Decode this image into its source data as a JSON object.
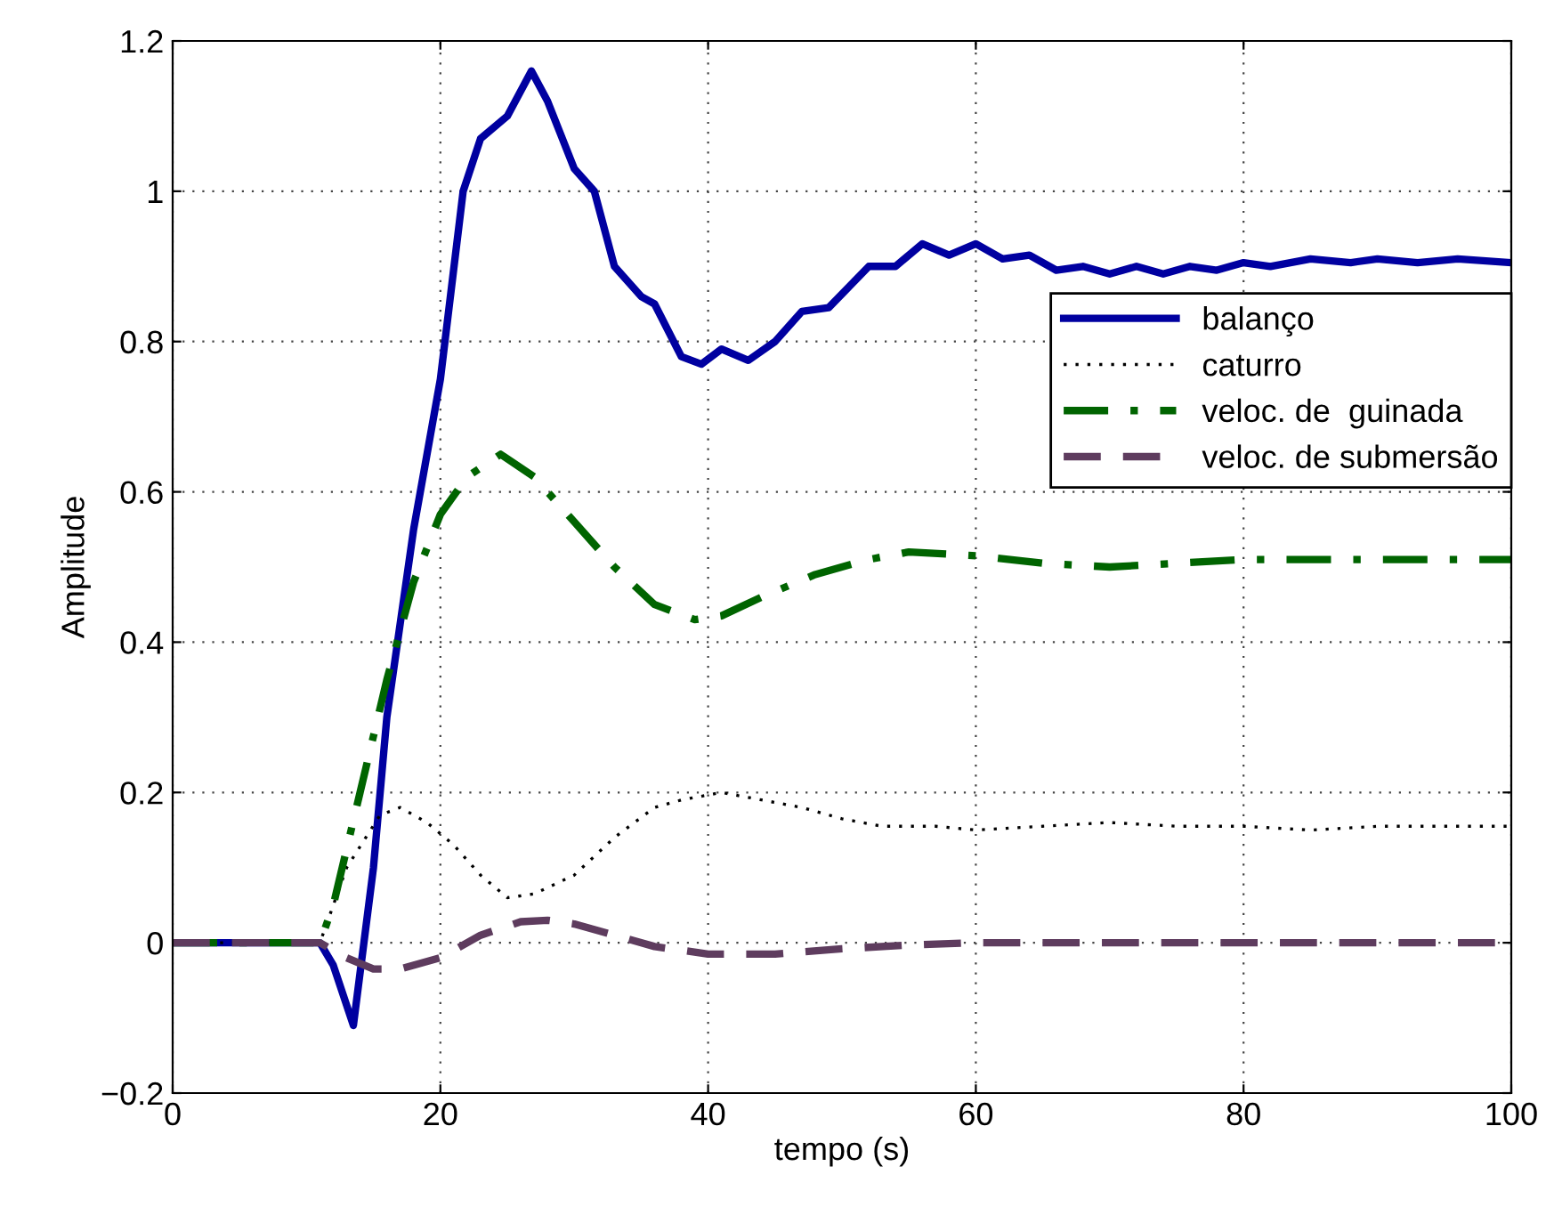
{
  "chart_data": {
    "type": "line",
    "xlabel": "tempo (s)",
    "ylabel": "Amplitude",
    "xlim": [
      0,
      100
    ],
    "ylim": [
      -0.2,
      1.2
    ],
    "xticks": [
      0,
      20,
      40,
      60,
      80,
      100
    ],
    "yticks": [
      {
        "value": -0.2,
        "label": "−0.2"
      },
      0,
      0.2,
      0.4,
      0.6,
      0.8,
      1,
      1.2
    ],
    "grid": true,
    "legend": "upper right",
    "series": [
      {
        "name": "balanço",
        "color": "#0000a0",
        "line_style": "solid",
        "x": [
          0,
          11,
          12,
          13.5,
          15,
          16,
          18,
          20,
          21.7,
          23,
          25,
          26.8,
          28,
          30,
          31.5,
          33,
          35,
          36,
          38,
          39.5,
          41,
          43,
          45,
          47,
          49,
          52,
          54,
          56,
          58,
          60,
          62,
          64,
          66,
          68,
          70,
          72,
          74,
          76,
          78,
          80,
          82,
          85,
          88,
          90,
          93,
          96,
          100
        ],
        "values": [
          0,
          0,
          -0.03,
          -0.11,
          0.1,
          0.3,
          0.55,
          0.75,
          1.0,
          1.07,
          1.1,
          1.16,
          1.12,
          1.03,
          1.0,
          0.9,
          0.86,
          0.85,
          0.78,
          0.77,
          0.79,
          0.775,
          0.8,
          0.84,
          0.845,
          0.9,
          0.9,
          0.93,
          0.915,
          0.93,
          0.91,
          0.915,
          0.895,
          0.9,
          0.89,
          0.9,
          0.89,
          0.9,
          0.895,
          0.905,
          0.9,
          0.91,
          0.905,
          0.91,
          0.905,
          0.91,
          0.905
        ]
      },
      {
        "name": "caturro",
        "color": "#000000",
        "line_style": "dotted",
        "x": [
          0,
          11,
          13,
          15.5,
          17,
          19,
          21,
          23,
          25,
          27,
          30,
          33,
          36,
          38,
          41,
          44,
          47,
          50,
          53,
          57,
          60,
          65,
          70,
          75,
          80,
          85,
          90,
          100
        ],
        "values": [
          0,
          0,
          0.1,
          0.17,
          0.18,
          0.16,
          0.13,
          0.09,
          0.06,
          0.065,
          0.09,
          0.14,
          0.18,
          0.19,
          0.2,
          0.19,
          0.18,
          0.165,
          0.155,
          0.155,
          0.15,
          0.155,
          0.16,
          0.155,
          0.155,
          0.15,
          0.155,
          0.155
        ]
      },
      {
        "name": "veloc. de  guinada",
        "color": "#006400",
        "line_style": "dashdot",
        "x": [
          0,
          11,
          12,
          14,
          16,
          18,
          20,
          22,
          24.5,
          27,
          30,
          33,
          36,
          39,
          41,
          44,
          48,
          52,
          55,
          60,
          65,
          70,
          75,
          80,
          90,
          100
        ],
        "values": [
          0,
          0,
          0.05,
          0.2,
          0.35,
          0.48,
          0.57,
          0.62,
          0.65,
          0.62,
          0.56,
          0.5,
          0.45,
          0.43,
          0.435,
          0.46,
          0.49,
          0.51,
          0.52,
          0.515,
          0.505,
          0.5,
          0.505,
          0.51,
          0.51,
          0.51
        ]
      },
      {
        "name": "veloc. de submersão",
        "color": "#5e3c5e",
        "line_style": "dashed",
        "x": [
          0,
          11,
          13,
          15,
          17,
          20,
          23,
          26,
          28,
          30,
          33,
          36,
          40,
          45,
          50,
          55,
          60,
          70,
          100
        ],
        "values": [
          0,
          0,
          -0.02,
          -0.035,
          -0.035,
          -0.02,
          0.01,
          0.028,
          0.03,
          0.025,
          0.01,
          -0.005,
          -0.015,
          -0.015,
          -0.008,
          -0.003,
          0,
          0,
          0
        ]
      }
    ]
  }
}
